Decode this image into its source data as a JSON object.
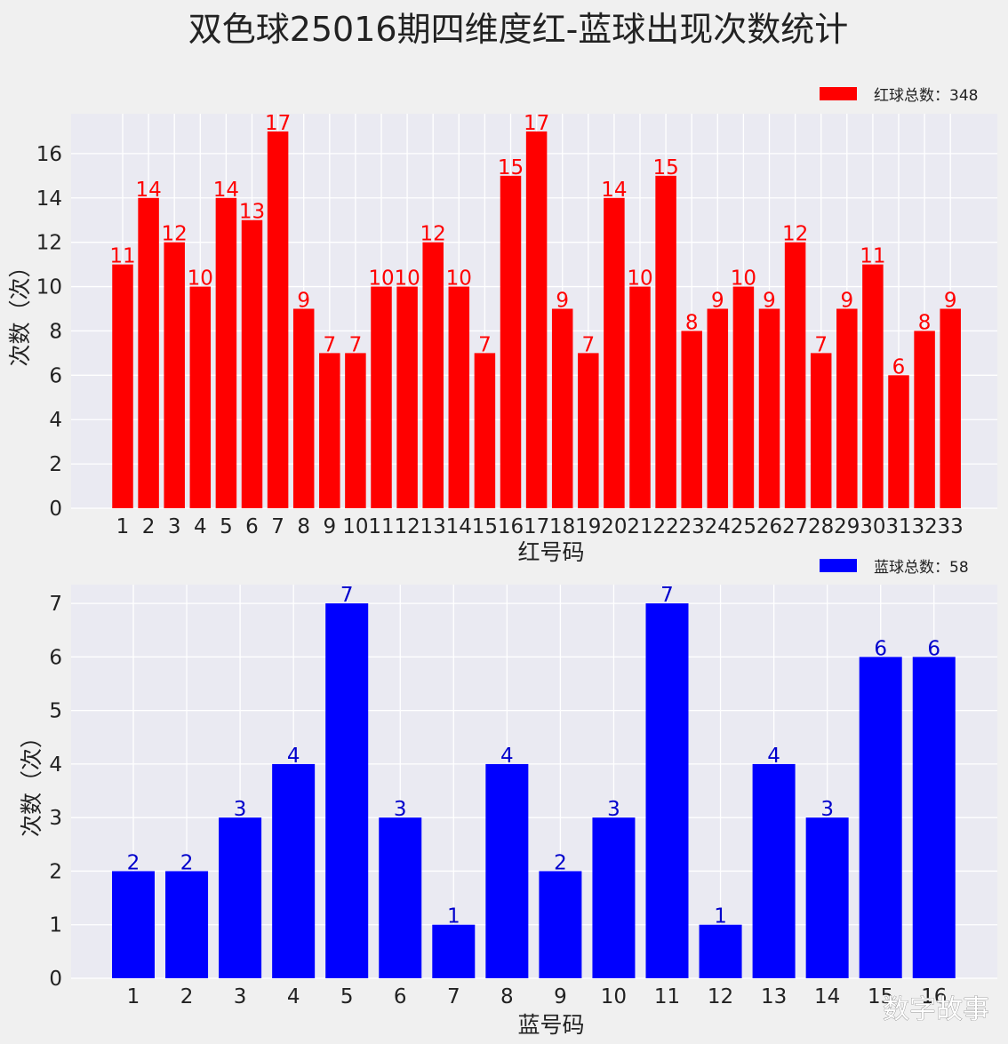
{
  "title": "双色球25016期四维度红-蓝球出现次数统计",
  "watermark": "数字故事",
  "chart_data": [
    {
      "type": "bar",
      "xlabel": "红号码",
      "ylabel": "次数（次）",
      "legend": "红球总数：348",
      "legend_position": "top-right",
      "grid": true,
      "color": "#ff0000",
      "label_color": "#ff0000",
      "ylim": [
        0,
        17.8
      ],
      "yticks": [
        0,
        2,
        4,
        6,
        8,
        10,
        12,
        14,
        16
      ],
      "categories": [
        "1",
        "2",
        "3",
        "4",
        "5",
        "6",
        "7",
        "8",
        "9",
        "10",
        "11",
        "12",
        "13",
        "14",
        "15",
        "16",
        "17",
        "18",
        "19",
        "20",
        "21",
        "22",
        "23",
        "24",
        "25",
        "26",
        "27",
        "28",
        "29",
        "30",
        "31",
        "32",
        "33"
      ],
      "values": [
        11,
        14,
        12,
        10,
        14,
        13,
        17,
        9,
        7,
        7,
        10,
        10,
        12,
        10,
        7,
        15,
        17,
        9,
        7,
        14,
        10,
        15,
        8,
        9,
        10,
        9,
        12,
        7,
        9,
        11,
        6,
        8,
        9
      ]
    },
    {
      "type": "bar",
      "xlabel": "蓝号码",
      "ylabel": "次数（次）",
      "legend": "蓝球总数：58",
      "legend_position": "top-right",
      "grid": true,
      "color": "#0000ff",
      "label_color": "#0000cc",
      "ylim": [
        0,
        7.35
      ],
      "yticks": [
        0,
        1,
        2,
        3,
        4,
        5,
        6,
        7
      ],
      "categories": [
        "1",
        "2",
        "3",
        "4",
        "5",
        "6",
        "7",
        "8",
        "9",
        "10",
        "11",
        "12",
        "13",
        "14",
        "15",
        "16"
      ],
      "values": [
        2,
        2,
        3,
        4,
        7,
        3,
        1,
        4,
        2,
        3,
        7,
        1,
        4,
        3,
        6,
        6
      ]
    }
  ]
}
